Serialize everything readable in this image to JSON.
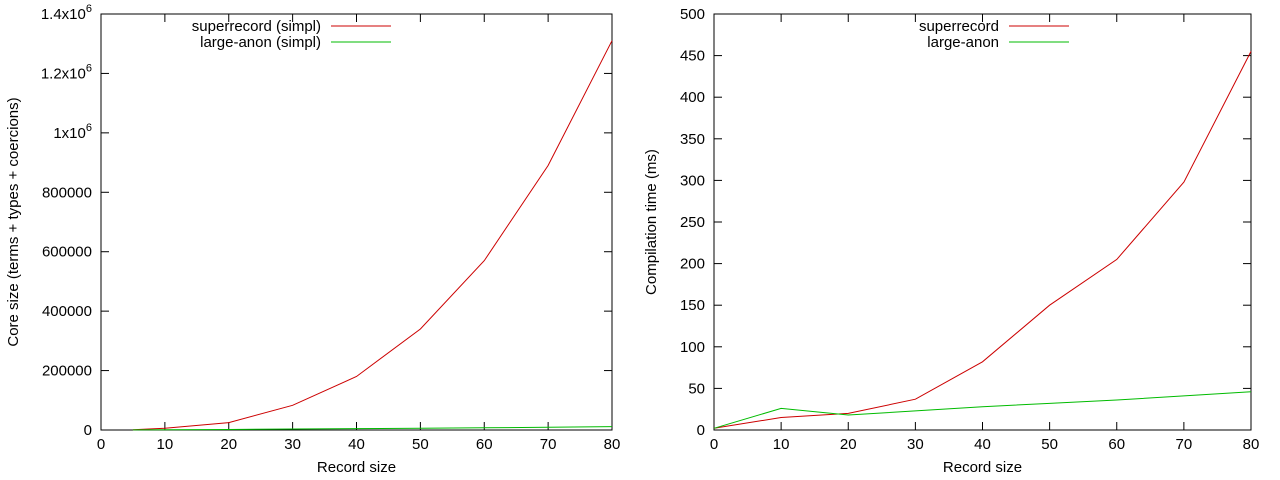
{
  "chart_data": [
    {
      "type": "line",
      "xlabel": "Record size",
      "ylabel": "Core size (terms + types + coercions)",
      "xlim": [
        0,
        80
      ],
      "ylim": [
        0,
        1400000
      ],
      "xticks": [
        0,
        10,
        20,
        30,
        40,
        50,
        60,
        70,
        80
      ],
      "yticks": [
        0,
        200000,
        400000,
        600000,
        800000,
        1000000,
        1200000,
        1400000
      ],
      "ytick_labels": [
        {
          "text": "0"
        },
        {
          "text": "200000"
        },
        {
          "text": "400000"
        },
        {
          "text": "600000"
        },
        {
          "text": "800000"
        },
        {
          "text": "1x10",
          "exp": "6"
        },
        {
          "text": "1.2x10",
          "exp": "6"
        },
        {
          "text": "1.4x10",
          "exp": "6"
        }
      ],
      "legend_position": "top-left",
      "grid": false,
      "series": [
        {
          "name": "superrecord (simpl)",
          "color": "#cc0000",
          "x": [
            5,
            10,
            20,
            30,
            40,
            50,
            60,
            70,
            80
          ],
          "y": [
            800,
            6000,
            25000,
            83000,
            180000,
            340000,
            570000,
            890000,
            1310000
          ]
        },
        {
          "name": "large-anon (simpl)",
          "color": "#00bb00",
          "x": [
            5,
            10,
            20,
            30,
            40,
            50,
            60,
            70,
            80
          ],
          "y": [
            300,
            800,
            1800,
            3200,
            4600,
            6000,
            7500,
            9000,
            11500
          ]
        }
      ]
    },
    {
      "type": "line",
      "xlabel": "Record size",
      "ylabel": "Compilation time (ms)",
      "xlim": [
        0,
        80
      ],
      "ylim": [
        0,
        500
      ],
      "xticks": [
        0,
        10,
        20,
        30,
        40,
        50,
        60,
        70,
        80
      ],
      "yticks": [
        0,
        50,
        100,
        150,
        200,
        250,
        300,
        350,
        400,
        450,
        500
      ],
      "ytick_labels": [
        {
          "text": "0"
        },
        {
          "text": "50"
        },
        {
          "text": "100"
        },
        {
          "text": "150"
        },
        {
          "text": "200"
        },
        {
          "text": "250"
        },
        {
          "text": "300"
        },
        {
          "text": "350"
        },
        {
          "text": "400"
        },
        {
          "text": "450"
        },
        {
          "text": "500"
        }
      ],
      "legend_position": "top-left",
      "grid": false,
      "series": [
        {
          "name": "superrecord",
          "color": "#cc0000",
          "x": [
            0,
            10,
            20,
            30,
            40,
            50,
            60,
            70,
            80
          ],
          "y": [
            2,
            15,
            20,
            37,
            82,
            150,
            205,
            298,
            455
          ]
        },
        {
          "name": "large-anon",
          "color": "#00bb00",
          "x": [
            0,
            10,
            20,
            30,
            40,
            50,
            60,
            70,
            80
          ],
          "y": [
            2,
            26,
            18,
            23,
            28,
            32,
            36,
            41,
            46
          ]
        }
      ]
    }
  ]
}
